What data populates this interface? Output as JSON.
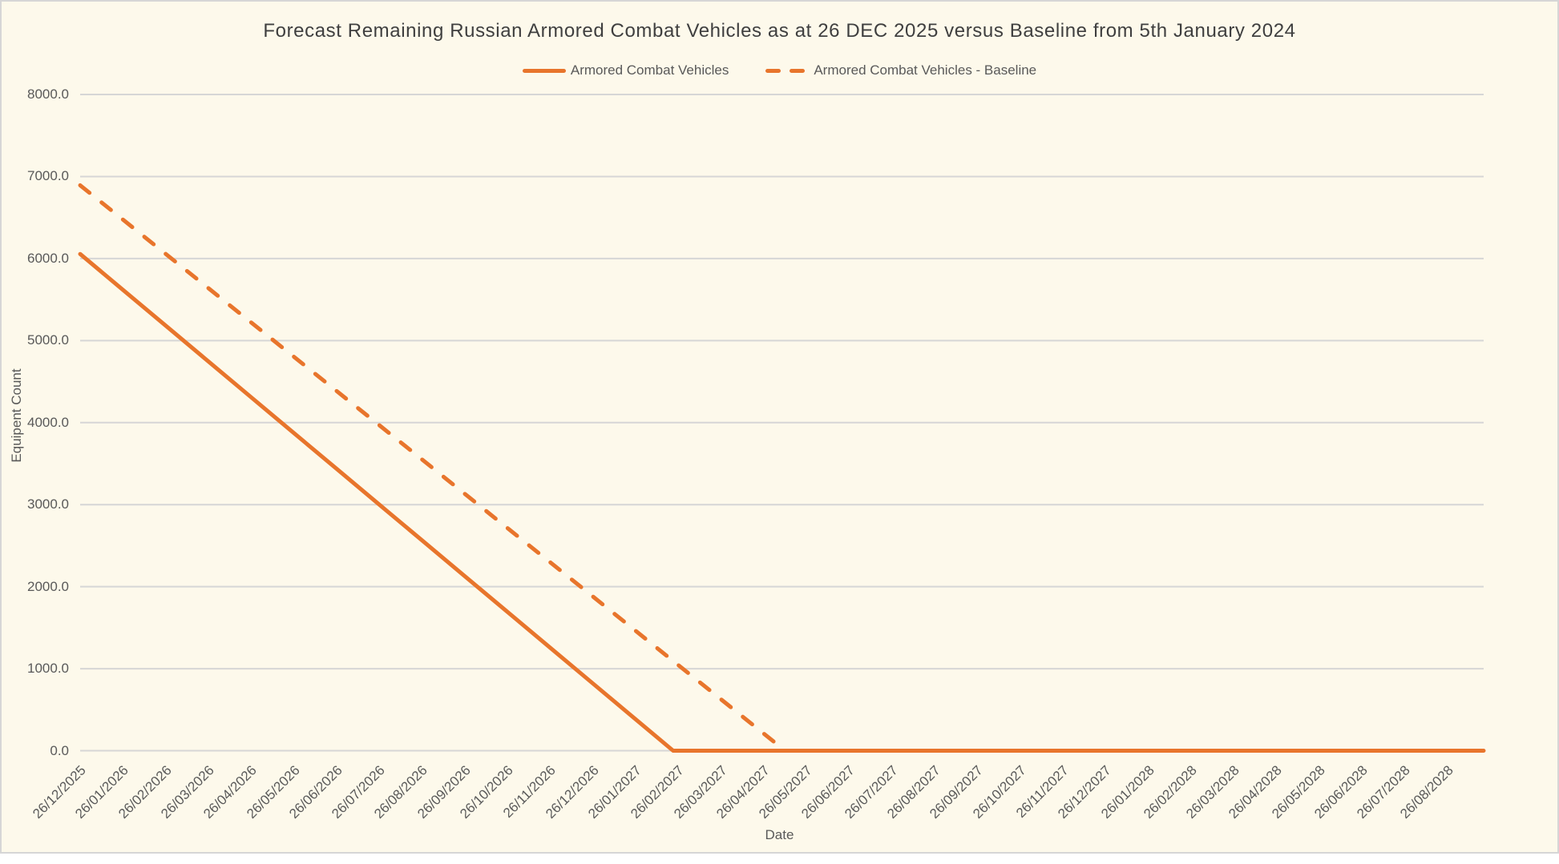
{
  "chart_data": {
    "type": "line",
    "title": "Forecast Remaining Russian Armored Combat Vehicles as at 26 DEC 2025 versus Baseline from 5th January 2024",
    "xlabel": "Date",
    "ylabel": "Equipent Count",
    "ylim": [
      0,
      8000
    ],
    "y_ticks": [
      0,
      1000,
      2000,
      3000,
      4000,
      5000,
      6000,
      7000,
      8000
    ],
    "y_tick_labels": [
      "0.0",
      "1000.0",
      "2000.0",
      "3000.0",
      "4000.0",
      "5000.0",
      "6000.0",
      "7000.0",
      "8000.0"
    ],
    "x_tick_labels": [
      "26/12/2025",
      "26/01/2026",
      "26/02/2026",
      "26/03/2026",
      "26/04/2026",
      "26/05/2026",
      "26/06/2026",
      "26/07/2026",
      "26/08/2026",
      "26/09/2026",
      "26/10/2026",
      "26/11/2026",
      "26/12/2026",
      "26/01/2027",
      "26/02/2027",
      "26/03/2027",
      "26/04/2027",
      "26/05/2027",
      "26/06/2027",
      "26/07/2027",
      "26/08/2027",
      "26/09/2027",
      "26/10/2027",
      "26/11/2027",
      "26/12/2027",
      "26/01/2028",
      "26/02/2028",
      "26/03/2028",
      "26/04/2028",
      "26/05/2028",
      "26/06/2028",
      "26/07/2028",
      "26/08/2028"
    ],
    "grid": "horizontal",
    "legend_position": "top",
    "colors": {
      "background": "#FDF9EB",
      "gridline": "#D6D6D6",
      "accent": "#E8752C",
      "axis_text": "#595959",
      "title_text": "#3F3F3F"
    },
    "series": [
      {
        "name": "Armored Combat Vehicles",
        "style": "solid",
        "color": "#E8752C",
        "extends_to_axis_end": true,
        "values": [
          6055,
          5619,
          5183,
          4746,
          4310,
          3874,
          3438,
          3001,
          2565,
          2129,
          1693,
          1256,
          820,
          384,
          0,
          0,
          0,
          0,
          0,
          0,
          0,
          0,
          0,
          0,
          0,
          0,
          0,
          0,
          0,
          0,
          0,
          0,
          0
        ]
      },
      {
        "name": "Armored Combat Vehicles - Baseline",
        "style": "dashed",
        "color": "#E8752C",
        "extends_to_axis_end": false,
        "values": [
          6893,
          6475,
          6057,
          5640,
          5222,
          4804,
          4386,
          3969,
          3551,
          3133,
          2715,
          2298,
          1880,
          1462,
          1044,
          627,
          209,
          0
        ]
      }
    ]
  }
}
